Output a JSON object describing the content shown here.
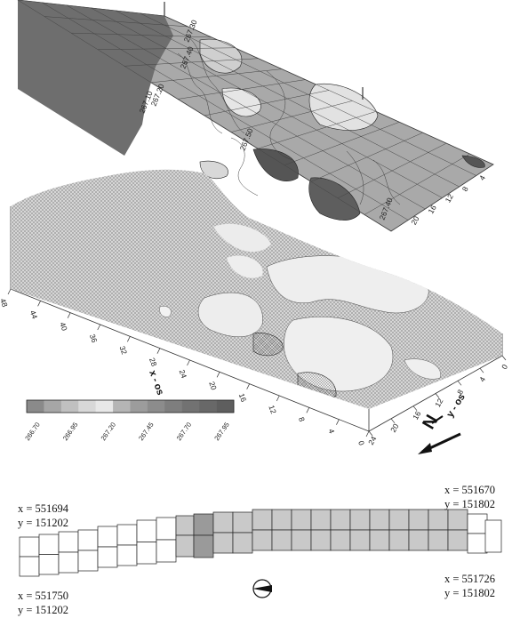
{
  "surface": {
    "x_axis_label": "x - os",
    "y_axis_label": "y - os",
    "x_ticks": [
      "0",
      "4",
      "8",
      "12",
      "16",
      "20",
      "24",
      "28",
      "32",
      "36",
      "40",
      "44",
      "48"
    ],
    "y_ticks": [
      "0",
      "4",
      "8",
      "12",
      "16",
      "20",
      "24"
    ],
    "plane_y_ticks": [
      "4",
      "8",
      "12",
      "16",
      "20"
    ],
    "contour_labels": [
      "267.30",
      "267.40",
      "267.20",
      "267.10",
      "267.50",
      "267.40"
    ],
    "north_label": "N"
  },
  "legend": {
    "values": [
      "266.70",
      "266.95",
      "267.20",
      "267.45",
      "267.70",
      "267.95"
    ],
    "colors": [
      "#8a8a8a",
      "#a6a6a6",
      "#c0c0c0",
      "#d8d8d8",
      "#e8e8e8",
      "#b5b5b5",
      "#9c9c9c",
      "#8c8c8c",
      "#7e7e7e",
      "#727272",
      "#686868",
      "#5e5e5e"
    ]
  },
  "plan": {
    "coords": {
      "top_left": [
        "x = 551694",
        "y = 151202"
      ],
      "bottom_left": [
        "x = 551750",
        "y = 151202"
      ],
      "top_right": [
        "x = 551670",
        "y = 151802"
      ],
      "bottom_right": [
        "x = 551726",
        "y = 151802"
      ]
    }
  }
}
